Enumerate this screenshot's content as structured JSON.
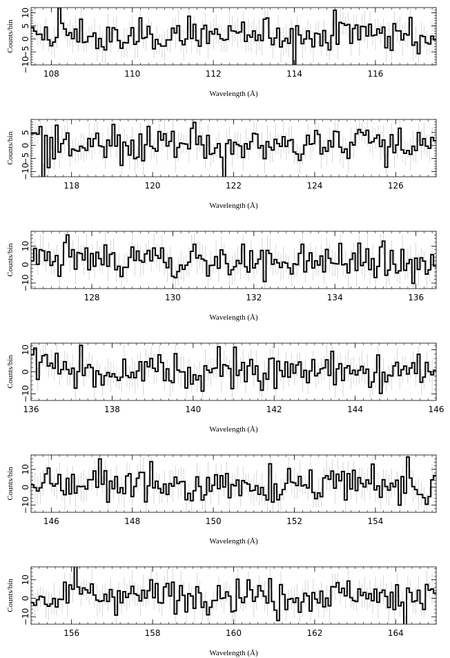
{
  "chart_data": [
    {
      "type": "line",
      "xlabel": "Wavelength (Å)",
      "ylabel": "Counts/bin",
      "xlim": [
        107.5,
        117.5
      ],
      "ylim": [
        -10,
        12
      ],
      "x_ticks": [
        108,
        110,
        112,
        114,
        116
      ],
      "y_ticks": [
        -10,
        -5,
        0,
        5,
        10
      ],
      "series": [
        {
          "x": [
            107.5,
            108.5,
            109.5,
            110.5,
            111.5,
            112.5,
            113.5,
            114.5,
            115.5,
            116.5,
            117.5
          ],
          "y": [
            0,
            2,
            -1,
            1,
            3,
            0,
            2,
            1,
            3,
            2,
            0
          ]
        }
      ]
    },
    {
      "type": "line",
      "xlabel": "Wavelength (Å)",
      "ylabel": "Counts/bin",
      "xlim": [
        117,
        127
      ],
      "ylim": [
        -12,
        10
      ],
      "x_ticks": [
        118,
        120,
        122,
        124,
        126
      ],
      "y_ticks": [
        -10,
        -5,
        0,
        5
      ],
      "series": [
        {
          "x": [
            117,
            118,
            119,
            120,
            121,
            122,
            123,
            124,
            125,
            126,
            127
          ],
          "y": [
            2,
            0,
            -1,
            1,
            2,
            -2,
            1,
            0,
            2,
            -1,
            1
          ]
        }
      ]
    },
    {
      "type": "line",
      "xlabel": "Wavelength (Å)",
      "ylabel": "Counts/bin",
      "xlim": [
        126.5,
        136.5
      ],
      "ylim": [
        -13,
        18
      ],
      "x_ticks": [
        128,
        130,
        132,
        134,
        136
      ],
      "y_ticks": [
        -10,
        0,
        10
      ],
      "series": [
        {
          "x": [
            126.5,
            127.5,
            128.5,
            129.5,
            130.5,
            131.5,
            132.5,
            133.5,
            134.5,
            135.5,
            136.5
          ],
          "y": [
            0,
            3,
            1,
            2,
            4,
            0,
            2,
            1,
            3,
            0,
            0
          ]
        }
      ]
    },
    {
      "type": "line",
      "xlabel": "Wavelength (Å)",
      "ylabel": "Counts/bin",
      "xlim": [
        136,
        146
      ],
      "ylim": [
        -13,
        13
      ],
      "x_ticks": [
        136,
        138,
        140,
        142,
        144,
        146
      ],
      "y_ticks": [
        -10,
        0,
        10
      ],
      "series": [
        {
          "x": [
            136,
            137,
            138,
            139,
            140,
            141,
            142,
            143,
            144,
            145,
            146
          ],
          "y": [
            5,
            1,
            0,
            2,
            0,
            1,
            2,
            1,
            0,
            -1,
            2
          ]
        }
      ]
    },
    {
      "type": "line",
      "xlabel": "Wavelength (Å)",
      "ylabel": "Counts/bin",
      "xlim": [
        145.5,
        155.5
      ],
      "ylim": [
        -14,
        18
      ],
      "x_ticks": [
        146,
        148,
        150,
        152,
        154
      ],
      "y_ticks": [
        -10,
        0,
        10
      ],
      "series": [
        {
          "x": [
            145.5,
            146.5,
            147.5,
            148.5,
            149.5,
            150.5,
            151.5,
            152.5,
            153.5,
            154.5,
            155.5
          ],
          "y": [
            0,
            4,
            2,
            1,
            0,
            2,
            1,
            2,
            1,
            0,
            1
          ]
        }
      ]
    },
    {
      "type": "line",
      "xlabel": "Wavelength (Å)",
      "ylabel": "Counts/bin",
      "xlim": [
        155,
        165
      ],
      "ylim": [
        -14,
        17
      ],
      "x_ticks": [
        156,
        158,
        160,
        162,
        164
      ],
      "y_ticks": [
        -10,
        0,
        10
      ],
      "series": [
        {
          "x": [
            155,
            156,
            157,
            158,
            159,
            160,
            161,
            162,
            163,
            164,
            165
          ],
          "y": [
            1,
            2,
            3,
            1,
            2,
            3,
            1,
            2,
            3,
            1,
            2
          ]
        }
      ]
    }
  ]
}
